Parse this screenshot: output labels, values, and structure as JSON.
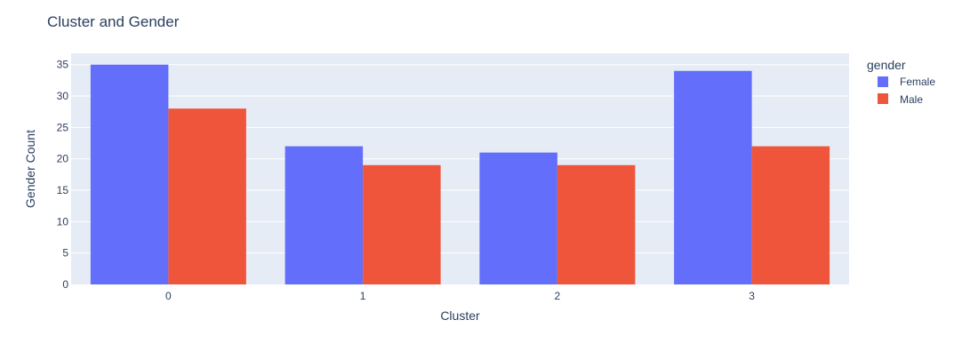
{
  "colors": {
    "background": "#ffffff",
    "plot_background": "#e5ecf6",
    "grid": "#ffffff",
    "text": "#2a3f5f",
    "female": "#636efa",
    "male": "#ef553b"
  },
  "chart_data": {
    "type": "bar",
    "barmode": "group",
    "title": "Cluster and Gender",
    "xlabel": "Cluster",
    "ylabel": "Gender Count",
    "categories": [
      "0",
      "1",
      "2",
      "3"
    ],
    "series": [
      {
        "name": "Female",
        "color": "#636efa",
        "values": [
          35,
          22,
          21,
          34
        ]
      },
      {
        "name": "Male",
        "color": "#ef553b",
        "values": [
          28,
          19,
          19,
          22
        ]
      }
    ],
    "ylim": [
      0,
      36.8
    ],
    "yticks": [
      0,
      5,
      10,
      15,
      20,
      25,
      30,
      35
    ],
    "grid": true,
    "legend": {
      "title": "gender",
      "placement": "top-right, outside plot"
    }
  }
}
